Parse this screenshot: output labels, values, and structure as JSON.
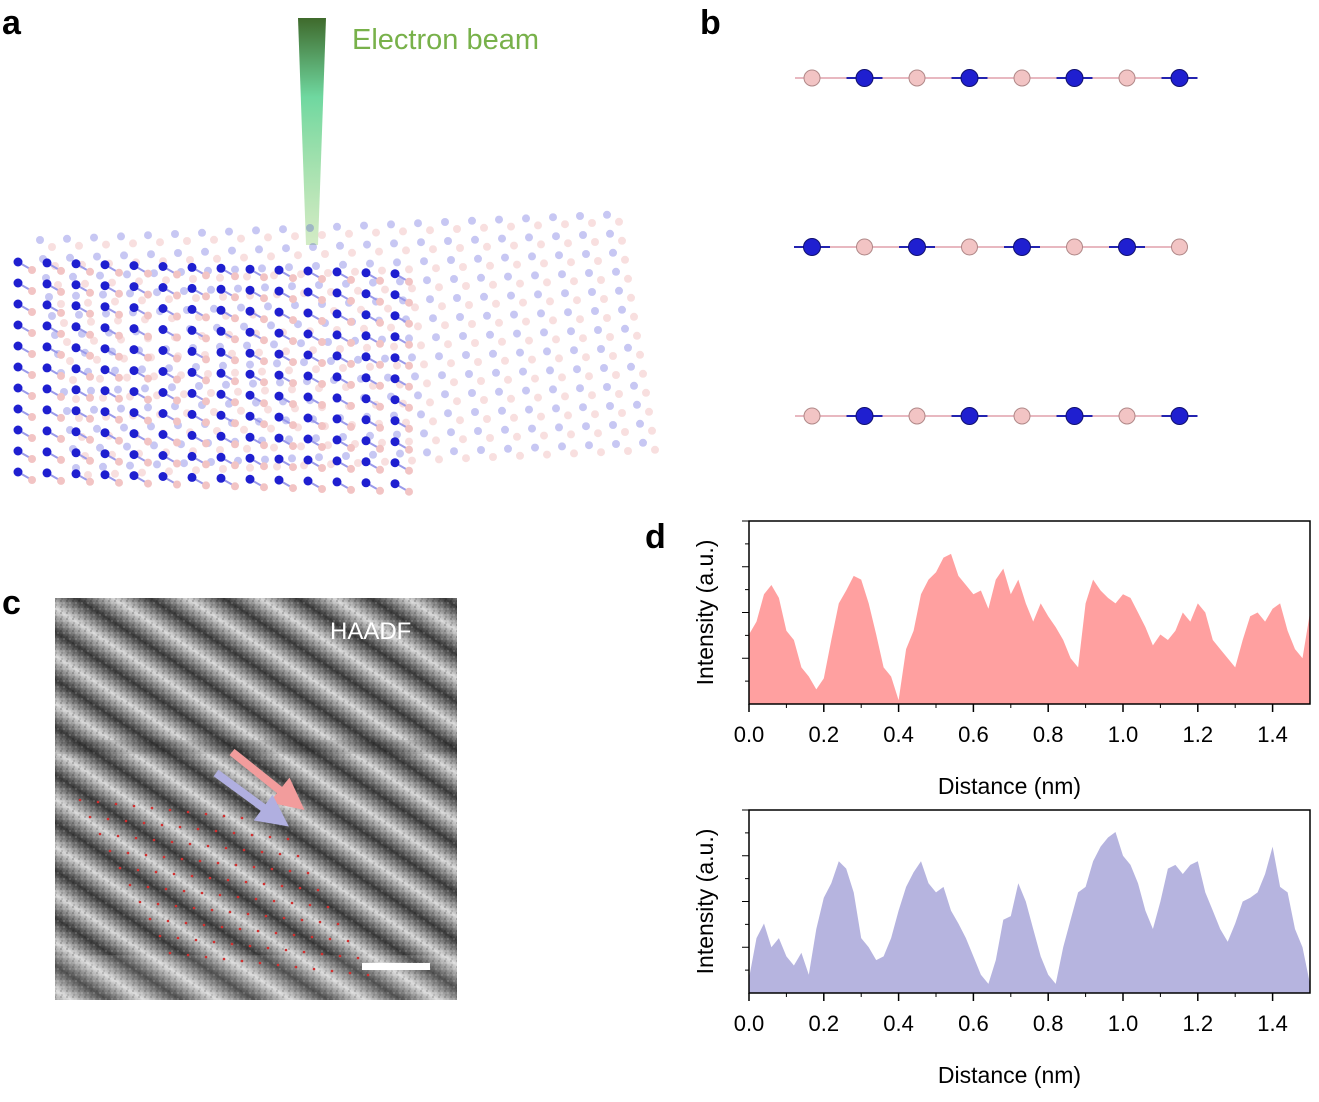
{
  "panels": {
    "a": "a",
    "b": "b",
    "c": "c",
    "d": "d"
  },
  "panel_a": {
    "beam_label": "Electron beam"
  },
  "panel_c": {
    "mode_label": "HAADF"
  },
  "colors": {
    "boron": "#f2c4c4",
    "nitrogen": "#1f1fd0",
    "beam": "#78b14a",
    "profile_red": "#ffa0a0",
    "profile_blue": "#b6b4df"
  },
  "chart_data": [
    {
      "type": "area",
      "title": "",
      "xlabel": "Distance (nm)",
      "ylabel": "Intensity (a.u.)",
      "xlim": [
        0,
        1.5
      ],
      "ylim": [
        0,
        1
      ],
      "xticks": [
        "0.0",
        "0.2",
        "0.4",
        "0.6",
        "0.8",
        "1.0",
        "1.2",
        "1.4"
      ],
      "x": [
        0.0,
        0.02,
        0.04,
        0.06,
        0.08,
        0.1,
        0.12,
        0.14,
        0.16,
        0.18,
        0.2,
        0.22,
        0.24,
        0.26,
        0.28,
        0.3,
        0.32,
        0.34,
        0.36,
        0.38,
        0.4,
        0.42,
        0.44,
        0.46,
        0.48,
        0.5,
        0.52,
        0.54,
        0.56,
        0.58,
        0.6,
        0.62,
        0.64,
        0.66,
        0.68,
        0.7,
        0.72,
        0.74,
        0.76,
        0.78,
        0.8,
        0.82,
        0.84,
        0.86,
        0.88,
        0.9,
        0.92,
        0.94,
        0.96,
        0.98,
        1.0,
        1.02,
        1.04,
        1.06,
        1.08,
        1.1,
        1.12,
        1.14,
        1.16,
        1.18,
        1.2,
        1.22,
        1.24,
        1.26,
        1.28,
        1.3,
        1.32,
        1.34,
        1.36,
        1.38,
        1.4,
        1.42,
        1.44,
        1.46,
        1.48,
        1.5
      ],
      "values": [
        0.38,
        0.45,
        0.6,
        0.65,
        0.58,
        0.4,
        0.35,
        0.2,
        0.15,
        0.08,
        0.14,
        0.35,
        0.55,
        0.62,
        0.7,
        0.68,
        0.55,
        0.38,
        0.2,
        0.15,
        0.02,
        0.3,
        0.4,
        0.6,
        0.68,
        0.72,
        0.8,
        0.82,
        0.7,
        0.65,
        0.6,
        0.62,
        0.52,
        0.68,
        0.74,
        0.6,
        0.68,
        0.55,
        0.45,
        0.55,
        0.48,
        0.42,
        0.35,
        0.25,
        0.2,
        0.55,
        0.68,
        0.62,
        0.58,
        0.55,
        0.6,
        0.58,
        0.5,
        0.42,
        0.32,
        0.38,
        0.35,
        0.4,
        0.5,
        0.45,
        0.55,
        0.5,
        0.35,
        0.3,
        0.25,
        0.2,
        0.35,
        0.48,
        0.5,
        0.45,
        0.52,
        0.55,
        0.4,
        0.3,
        0.25,
        0.5
      ]
    },
    {
      "type": "area",
      "title": "",
      "xlabel": "Distance (nm)",
      "ylabel": "Intensity (a.u.)",
      "xlim": [
        0,
        1.5
      ],
      "ylim": [
        0,
        1
      ],
      "xticks": [
        "0.0",
        "0.2",
        "0.4",
        "0.6",
        "0.8",
        "1.0",
        "1.2",
        "1.4"
      ],
      "x": [
        0.0,
        0.02,
        0.04,
        0.06,
        0.08,
        0.1,
        0.12,
        0.14,
        0.16,
        0.18,
        0.2,
        0.22,
        0.24,
        0.26,
        0.28,
        0.3,
        0.32,
        0.34,
        0.36,
        0.38,
        0.4,
        0.42,
        0.44,
        0.46,
        0.48,
        0.5,
        0.52,
        0.54,
        0.56,
        0.58,
        0.6,
        0.62,
        0.64,
        0.66,
        0.68,
        0.7,
        0.72,
        0.74,
        0.76,
        0.78,
        0.8,
        0.82,
        0.84,
        0.86,
        0.88,
        0.9,
        0.92,
        0.94,
        0.96,
        0.98,
        1.0,
        1.02,
        1.04,
        1.06,
        1.08,
        1.1,
        1.12,
        1.14,
        1.16,
        1.18,
        1.2,
        1.22,
        1.24,
        1.26,
        1.28,
        1.3,
        1.32,
        1.34,
        1.36,
        1.38,
        1.4,
        1.42,
        1.44,
        1.46,
        1.48,
        1.5
      ],
      "values": [
        0.08,
        0.3,
        0.38,
        0.25,
        0.3,
        0.2,
        0.15,
        0.22,
        0.1,
        0.35,
        0.52,
        0.6,
        0.72,
        0.68,
        0.55,
        0.3,
        0.25,
        0.18,
        0.2,
        0.3,
        0.45,
        0.58,
        0.66,
        0.72,
        0.6,
        0.55,
        0.58,
        0.45,
        0.38,
        0.3,
        0.2,
        0.1,
        0.05,
        0.18,
        0.4,
        0.42,
        0.6,
        0.5,
        0.35,
        0.2,
        0.1,
        0.05,
        0.25,
        0.4,
        0.55,
        0.58,
        0.72,
        0.8,
        0.85,
        0.88,
        0.75,
        0.7,
        0.6,
        0.45,
        0.35,
        0.5,
        0.68,
        0.7,
        0.65,
        0.7,
        0.72,
        0.55,
        0.45,
        0.35,
        0.28,
        0.38,
        0.5,
        0.52,
        0.55,
        0.65,
        0.8,
        0.58,
        0.55,
        0.35,
        0.25,
        0.05
      ]
    }
  ]
}
